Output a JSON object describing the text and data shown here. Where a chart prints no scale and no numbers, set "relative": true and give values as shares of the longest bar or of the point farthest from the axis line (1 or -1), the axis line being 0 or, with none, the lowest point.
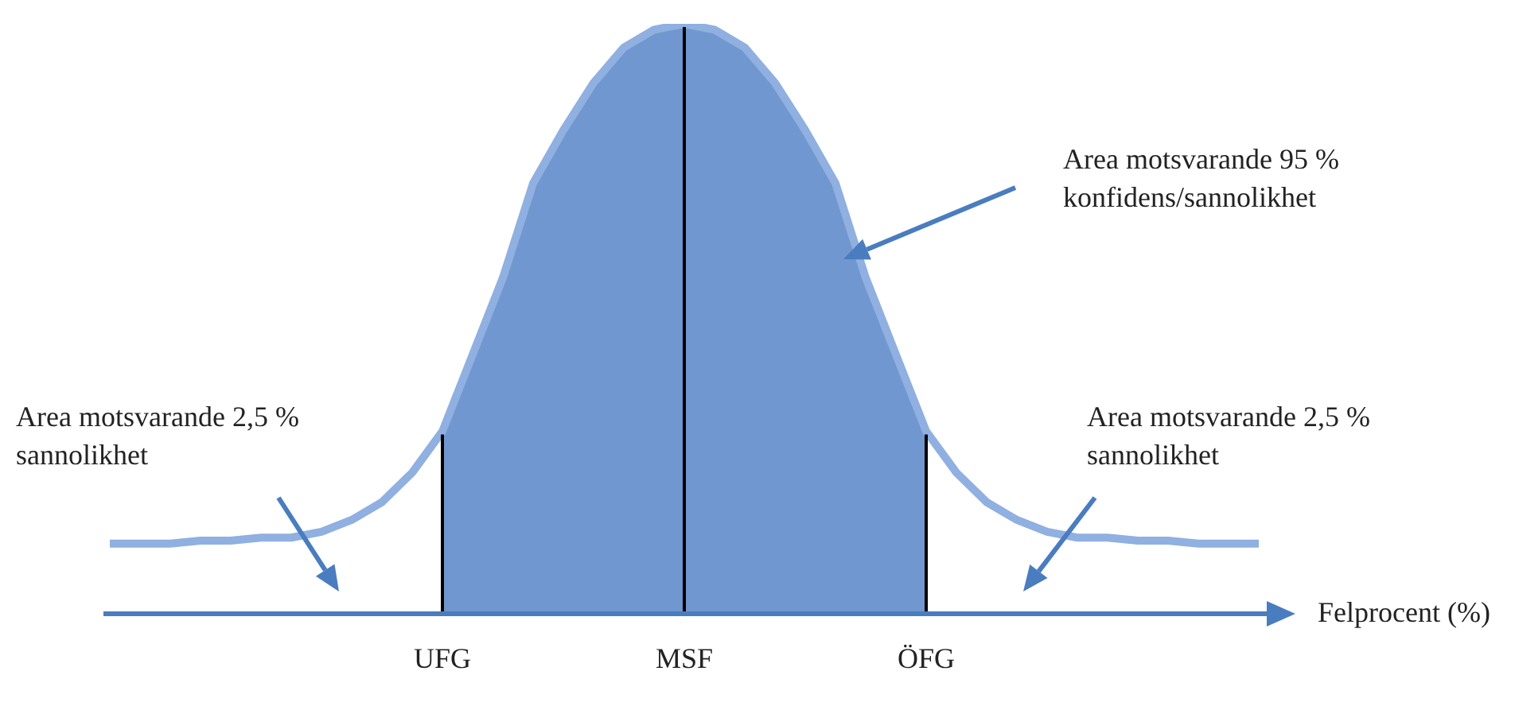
{
  "chart_data": {
    "type": "area",
    "relative": true,
    "legend": false,
    "grid": false,
    "xlabel": "Felprocent (%)",
    "categories": [
      null,
      null,
      null,
      null,
      null,
      null,
      null,
      null,
      null,
      null,
      null,
      null,
      "UFG",
      null,
      null,
      null,
      null,
      null,
      null,
      null,
      "MSF",
      null,
      null,
      null,
      null,
      null,
      null,
      null,
      "ÖFG",
      null,
      null,
      null,
      null,
      null,
      null,
      null,
      null,
      null,
      null,
      null,
      null
    ],
    "series": [
      {
        "color": "#7097cf",
        "values": [
          null,
          null,
          null,
          null,
          null,
          null,
          null,
          null,
          null,
          null,
          null,
          null,
          0.31,
          0.44,
          0.57,
          0.73,
          0.82,
          0.9,
          0.96,
          0.99,
          1,
          0.99,
          0.96,
          0.9,
          0.82,
          0.73,
          0.57,
          0.44,
          0.31,
          null,
          null,
          null,
          null,
          null,
          null,
          null,
          null,
          null,
          null,
          null,
          null
        ]
      },
      {
        "type": "line",
        "color": "#8fb0e0",
        "values": [
          null,
          0.12,
          0.12,
          0.12,
          0.125,
          0.125,
          0.13,
          0.13,
          0.14,
          0.16,
          0.19,
          0.24,
          0.31,
          0.44,
          0.57,
          0.73,
          0.82,
          0.9,
          0.96,
          0.99,
          1,
          0.99,
          0.96,
          0.9,
          0.82,
          0.73,
          0.57,
          0.44,
          0.31,
          0.24,
          0.19,
          0.16,
          0.14,
          0.13,
          0.13,
          0.125,
          0.125,
          0.12,
          0.12,
          0.12,
          null
        ]
      }
    ],
    "ref_lines": [
      {
        "axis": "x",
        "value": "UFG",
        "color": "#000000"
      },
      {
        "axis": "x",
        "value": "MSF",
        "color": "#000000"
      },
      {
        "axis": "x",
        "value": "ÖFG",
        "color": "#000000"
      }
    ],
    "annotations": [
      "Area motsvarande 95 %\nkonfidens/sannolikhet",
      "Area motsvarande 2,5 %\nsannolikhet",
      "Area motsvarande 2,5 %\nsannolikhet"
    ]
  }
}
